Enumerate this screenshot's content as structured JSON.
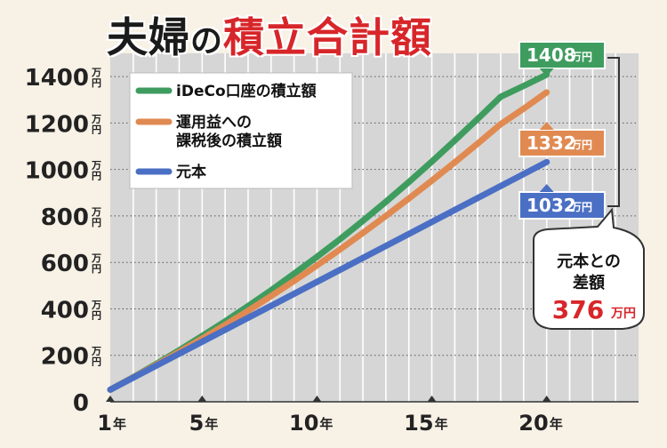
{
  "title": {
    "part1": "夫婦",
    "part2": "の",
    "part3": "積立合計額"
  },
  "colors": {
    "ideco": "#3f9c5f",
    "taxed": "#e08a52",
    "principal": "#4a6fc4",
    "red": "#d7262a",
    "background": "#f7f1e6",
    "plot_bg": "#d6d6d6",
    "grid": "#ffffff"
  },
  "chart_data": {
    "type": "line",
    "title": "夫婦の積立合計額",
    "x_ticks": [
      {
        "x": 1,
        "label": "1",
        "unit": "年"
      },
      {
        "x": 5,
        "label": "5",
        "unit": "年"
      },
      {
        "x": 10,
        "label": "10",
        "unit": "年"
      },
      {
        "x": 15,
        "label": "15",
        "unit": "年"
      },
      {
        "x": 20,
        "label": "20",
        "unit": "年"
      }
    ],
    "y_ticks": [
      {
        "y": 0,
        "label": "0",
        "unit": ""
      },
      {
        "y": 200,
        "label": "200",
        "unit": "万円"
      },
      {
        "y": 400,
        "label": "400",
        "unit": "万円"
      },
      {
        "y": 600,
        "label": "600",
        "unit": "万円"
      },
      {
        "y": 800,
        "label": "800",
        "unit": "万円"
      },
      {
        "y": 1000,
        "label": "1000",
        "unit": "万円"
      },
      {
        "y": 1200,
        "label": "1200",
        "unit": "万円"
      },
      {
        "y": 1400,
        "label": "1400",
        "unit": "万円"
      }
    ],
    "xlim": [
      1,
      24
    ],
    "ylim": [
      0,
      1500
    ],
    "grid": true,
    "legend_position": "top-left",
    "series": [
      {
        "name": "iDeCo口座の積立額",
        "name_lines": [
          "iDeCo口座の積立額"
        ],
        "color": "#3f9c5f",
        "x": [
          1,
          2,
          3,
          4,
          5,
          6,
          7,
          8,
          9,
          10,
          11,
          12,
          13,
          14,
          15,
          16,
          17,
          18,
          19,
          20
        ],
        "y": [
          52,
          106,
          163,
          222,
          283,
          346,
          412,
          480,
          551,
          624,
          700,
          779,
          861,
          946,
          1034,
          1125,
          1218,
          1313,
          1360,
          1408
        ],
        "end_label": "1408",
        "end_unit": "万円"
      },
      {
        "name": "運用益への課税後の積立額",
        "name_lines": [
          "運用益への",
          "課税後の積立額"
        ],
        "color": "#e08a52",
        "x": [
          1,
          2,
          3,
          4,
          5,
          6,
          7,
          8,
          9,
          10,
          11,
          12,
          13,
          14,
          15,
          16,
          17,
          18,
          19,
          20
        ],
        "y": [
          52,
          105,
          159,
          215,
          272,
          331,
          392,
          455,
          520,
          587,
          656,
          727,
          800,
          875,
          952,
          1031,
          1112,
          1195,
          1262,
          1332
        ],
        "end_label": "1332",
        "end_unit": "万円"
      },
      {
        "name": "元本",
        "name_lines": [
          "元本"
        ],
        "color": "#4a6fc4",
        "x": [
          1,
          20
        ],
        "y": [
          52,
          1032
        ],
        "end_label": "1032",
        "end_unit": "万円"
      }
    ],
    "annotation": {
      "line1": "元本との",
      "line2": "差額",
      "value": "376",
      "unit": "万円"
    }
  }
}
